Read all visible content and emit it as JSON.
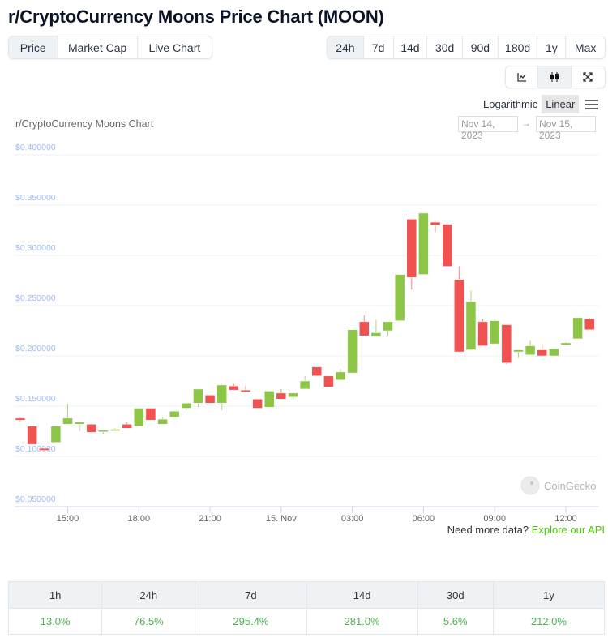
{
  "title": "r/CryptoCurrency Moons Price Chart (MOON)",
  "view_tabs": [
    {
      "label": "Price",
      "active": true
    },
    {
      "label": "Market Cap",
      "active": false
    },
    {
      "label": "Live Chart",
      "active": false
    }
  ],
  "range_tabs": [
    {
      "label": "24h",
      "active": true
    },
    {
      "label": "7d"
    },
    {
      "label": "14d"
    },
    {
      "label": "30d"
    },
    {
      "label": "90d"
    },
    {
      "label": "180d"
    },
    {
      "label": "1y"
    },
    {
      "label": "Max"
    }
  ],
  "chart_type_buttons": [
    {
      "icon": "line-chart-icon"
    },
    {
      "icon": "candlestick-icon",
      "active": true
    },
    {
      "icon": "fullscreen-icon"
    }
  ],
  "scale": {
    "logarithmic": "Logarithmic",
    "linear": "Linear",
    "active": "Linear",
    "menu_icon": "hamburger-menu-icon"
  },
  "date_range": {
    "from": "Nov 14, 2023",
    "arrow": "→",
    "to": "Nov 15, 2023"
  },
  "watermark": "CoinGecko",
  "colors": {
    "up": "#8dc647",
    "down": "#f05151",
    "axis_label": "#9dbcf0",
    "grid": "#eef1f5"
  },
  "chart_data": {
    "type": "candlestick",
    "title": "r/CryptoCurrency Moons Chart",
    "ylim": [
      0.05,
      0.4
    ],
    "yticks": [
      "$0.400000",
      "$0.350000",
      "$0.300000",
      "$0.250000",
      "$0.200000",
      "$0.150000",
      "$0.100000",
      "$0.050000"
    ],
    "ytick_values": [
      0.4,
      0.35,
      0.3,
      0.25,
      0.2,
      0.15,
      0.1,
      0.05
    ],
    "xticks": [
      {
        "label": "15:00",
        "time": "15:00"
      },
      {
        "label": "18:00",
        "time": "18:00"
      },
      {
        "label": "21:00",
        "time": "21:00"
      },
      {
        "label": "15. Nov",
        "time": "00:00"
      },
      {
        "label": "03:00",
        "time": "03:00"
      },
      {
        "label": "06:00",
        "time": "06:00"
      },
      {
        "label": "09:00",
        "time": "09:00"
      },
      {
        "label": "12:00",
        "time": "12:00"
      }
    ],
    "grid": true,
    "fields": [
      "time",
      "open",
      "high",
      "low",
      "close"
    ],
    "candles": [
      [
        "13:00",
        0.138,
        0.139,
        0.135,
        0.136
      ],
      [
        "13:30",
        0.13,
        0.13,
        0.112,
        0.112
      ],
      [
        "14:00",
        0.108,
        0.108,
        0.106,
        0.106
      ],
      [
        "14:30",
        0.114,
        0.13,
        0.114,
        0.13
      ],
      [
        "15:00",
        0.132,
        0.152,
        0.132,
        0.138
      ],
      [
        "15:30",
        0.132,
        0.134,
        0.125,
        0.134
      ],
      [
        "16:00",
        0.132,
        0.132,
        0.124,
        0.124
      ],
      [
        "16:30",
        0.125,
        0.126,
        0.122,
        0.126
      ],
      [
        "17:00",
        0.126,
        0.128,
        0.126,
        0.127
      ],
      [
        "17:30",
        0.132,
        0.134,
        0.128,
        0.128
      ],
      [
        "18:00",
        0.13,
        0.148,
        0.13,
        0.148
      ],
      [
        "18:30",
        0.148,
        0.148,
        0.136,
        0.136
      ],
      [
        "19:00",
        0.132,
        0.139,
        0.132,
        0.137
      ],
      [
        "19:30",
        0.139,
        0.145,
        0.139,
        0.145
      ],
      [
        "20:00",
        0.148,
        0.153,
        0.146,
        0.153
      ],
      [
        "20:30",
        0.153,
        0.167,
        0.149,
        0.167
      ],
      [
        "21:00",
        0.161,
        0.161,
        0.153,
        0.153
      ],
      [
        "21:30",
        0.153,
        0.172,
        0.146,
        0.171
      ],
      [
        "22:00",
        0.17,
        0.172,
        0.166,
        0.166
      ],
      [
        "22:30",
        0.166,
        0.17,
        0.164,
        0.164
      ],
      [
        "23:00",
        0.157,
        0.157,
        0.148,
        0.148
      ],
      [
        "23:30",
        0.149,
        0.165,
        0.149,
        0.165
      ],
      [
        "00:00",
        0.163,
        0.167,
        0.157,
        0.157
      ],
      [
        "00:30",
        0.159,
        0.163,
        0.157,
        0.163
      ],
      [
        "01:00",
        0.167,
        0.18,
        0.167,
        0.175
      ],
      [
        "01:30",
        0.189,
        0.189,
        0.18,
        0.18
      ],
      [
        "02:00",
        0.18,
        0.18,
        0.169,
        0.169
      ],
      [
        "02:30",
        0.176,
        0.187,
        0.176,
        0.184
      ],
      [
        "03:00",
        0.183,
        0.226,
        0.183,
        0.226
      ],
      [
        "03:30",
        0.234,
        0.24,
        0.22,
        0.22
      ],
      [
        "04:00",
        0.219,
        0.236,
        0.219,
        0.223
      ],
      [
        "04:30",
        0.225,
        0.234,
        0.22,
        0.234
      ],
      [
        "05:00",
        0.235,
        0.281,
        0.235,
        0.281
      ],
      [
        "05:30",
        0.336,
        0.336,
        0.266,
        0.278
      ],
      [
        "06:00",
        0.281,
        0.342,
        0.281,
        0.342
      ],
      [
        "06:30",
        0.333,
        0.333,
        0.323,
        0.33
      ],
      [
        "07:00",
        0.331,
        0.331,
        0.289,
        0.289
      ],
      [
        "07:30",
        0.276,
        0.289,
        0.204,
        0.204
      ],
      [
        "08:00",
        0.206,
        0.265,
        0.206,
        0.254
      ],
      [
        "08:30",
        0.234,
        0.237,
        0.21,
        0.21
      ],
      [
        "09:00",
        0.212,
        0.237,
        0.212,
        0.235
      ],
      [
        "09:30",
        0.231,
        0.231,
        0.192,
        0.193
      ],
      [
        "10:00",
        0.204,
        0.206,
        0.198,
        0.206
      ],
      [
        "10:30",
        0.201,
        0.215,
        0.201,
        0.21
      ],
      [
        "11:00",
        0.206,
        0.212,
        0.2,
        0.2
      ],
      [
        "11:30",
        0.2,
        0.207,
        0.2,
        0.207
      ],
      [
        "12:00",
        0.211,
        0.214,
        0.211,
        0.213
      ],
      [
        "12:30",
        0.217,
        0.238,
        0.217,
        0.238
      ],
      [
        "13:00",
        0.237,
        0.238,
        0.226,
        0.226
      ]
    ]
  },
  "api_promo": {
    "text": "Need more data?",
    "link": "Explore our API"
  },
  "performance": {
    "headers": [
      "1h",
      "24h",
      "7d",
      "14d",
      "30d",
      "1y"
    ],
    "values": [
      "13.0%",
      "76.5%",
      "295.4%",
      "281.0%",
      "5.6%",
      "212.0%"
    ]
  }
}
